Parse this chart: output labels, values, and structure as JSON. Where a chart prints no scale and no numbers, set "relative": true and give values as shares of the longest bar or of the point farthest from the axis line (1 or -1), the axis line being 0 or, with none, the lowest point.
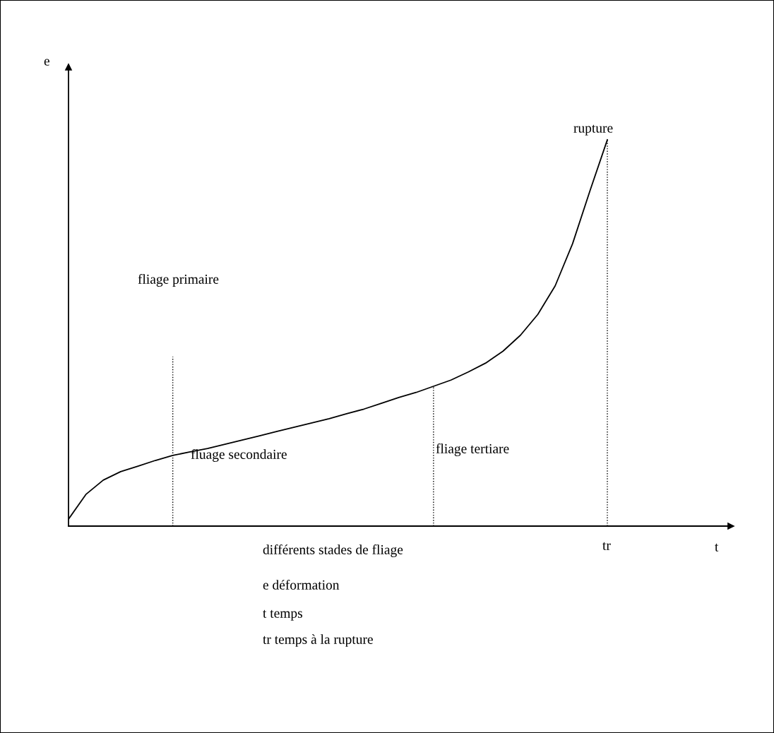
{
  "chart_data": {
    "type": "line",
    "relative": true,
    "categories": [
      null,
      null,
      null,
      null,
      null,
      null,
      null,
      null,
      null,
      null,
      null,
      null,
      null,
      null,
      null,
      null,
      null,
      null,
      null,
      null,
      null,
      null,
      null,
      null,
      null,
      null,
      null,
      null,
      null,
      null,
      null,
      null
    ],
    "series": [
      {
        "color": "#000000",
        "values": [
          0.018,
          0.082,
          0.119,
          0.141,
          0.155,
          0.17,
          0.183,
          0.192,
          0.201,
          0.212,
          0.223,
          0.234,
          0.245,
          0.256,
          0.267,
          0.278,
          0.291,
          0.303,
          0.318,
          0.333,
          0.346,
          0.362,
          0.378,
          0.399,
          0.422,
          0.453,
          0.494,
          0.548,
          0.622,
          0.731,
          0.868,
          1.0
        ]
      }
    ],
    "annotations": [
      "e",
      "t",
      "tr",
      "fliage primaire",
      "fluage secondaire",
      "fliage tertiare",
      "rupture",
      "différents stades de fliage",
      "e déformation",
      "t temps",
      "tr temps à la rupture"
    ],
    "legend": false,
    "marker": "none",
    "line_style": "solid"
  }
}
